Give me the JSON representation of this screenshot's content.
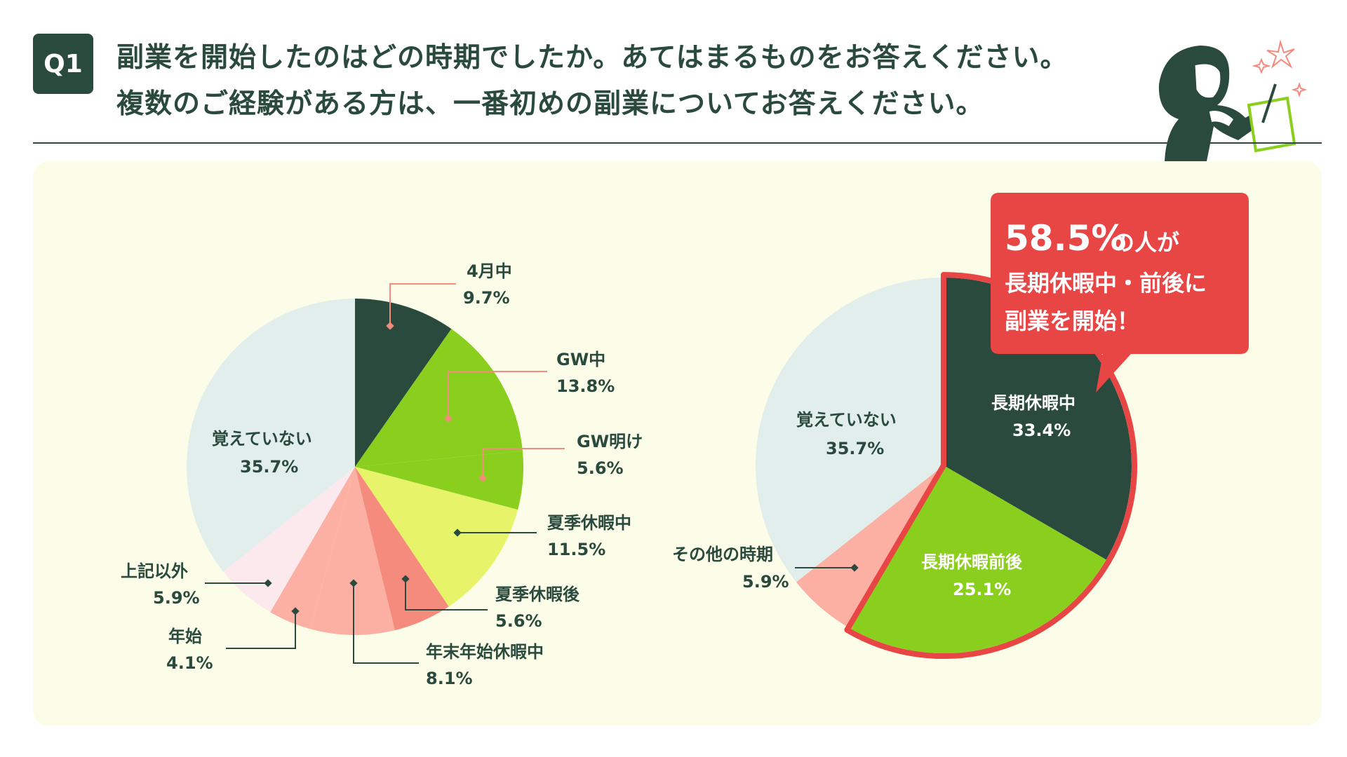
{
  "question": {
    "badge": "Q1",
    "line1": "副業を開始したのはどの時期でしたか。あてはまるものをお答えください。",
    "line2": "複数のご経験がある方は、一番初めの副業についてお答えください。"
  },
  "colors": {
    "dark_green": "#2a4a3e",
    "green": "#8bcf1e",
    "light_green": "#e7f46a",
    "salmon": "#f58b7d",
    "pink": "#fbb0a3",
    "light_pink": "#fbe9ee",
    "pale_blue": "#e1eeeb",
    "red": "#e84545",
    "panel_bg": "#fcfde8"
  },
  "chart_data": [
    {
      "type": "pie",
      "title": "",
      "unit": "%",
      "slices": [
        {
          "label": "4月中",
          "value": 9.7,
          "display": "9.7%",
          "color": "#2a4a3e"
        },
        {
          "label": "GW中",
          "value": 13.8,
          "display": "13.8%",
          "color": "#8bcf1e"
        },
        {
          "label": "GW明け",
          "value": 5.6,
          "display": "5.6%",
          "color": "#8bcf1e"
        },
        {
          "label": "夏季休暇中",
          "value": 11.5,
          "display": "11.5%",
          "color": "#e7f46a"
        },
        {
          "label": "夏季休暇後",
          "value": 5.6,
          "display": "5.6%",
          "color": "#f58b7d"
        },
        {
          "label": "年末年始休暇中",
          "value": 8.1,
          "display": "8.1%",
          "color": "#fbb0a3"
        },
        {
          "label": "年始",
          "value": 4.1,
          "display": "4.1%",
          "color": "#fbb0a3"
        },
        {
          "label": "上記以外",
          "value": 5.9,
          "display": "5.9%",
          "color": "#fbe9ee"
        },
        {
          "label": "覚えていない",
          "value": 35.7,
          "display": "35.7%",
          "color": "#e1eeeb"
        }
      ]
    },
    {
      "type": "pie",
      "title": "",
      "unit": "%",
      "slices": [
        {
          "label": "長期休暇中",
          "value": 33.4,
          "display": "33.4%",
          "color": "#2a4a3e"
        },
        {
          "label": "長期休暇前後",
          "value": 25.1,
          "display": "25.1%",
          "color": "#8bcf1e"
        },
        {
          "label": "その他の時期",
          "value": 5.9,
          "display": "5.9%",
          "color": "#fbb0a3"
        },
        {
          "label": "覚えていない",
          "value": 35.7,
          "display": "35.7%",
          "color": "#e1eeeb"
        }
      ],
      "callout": {
        "line1_number": "58.5%",
        "line1_rest": "の人が",
        "line2": "長期休暇中・前後に",
        "line3": "副業を開始！"
      }
    }
  ]
}
